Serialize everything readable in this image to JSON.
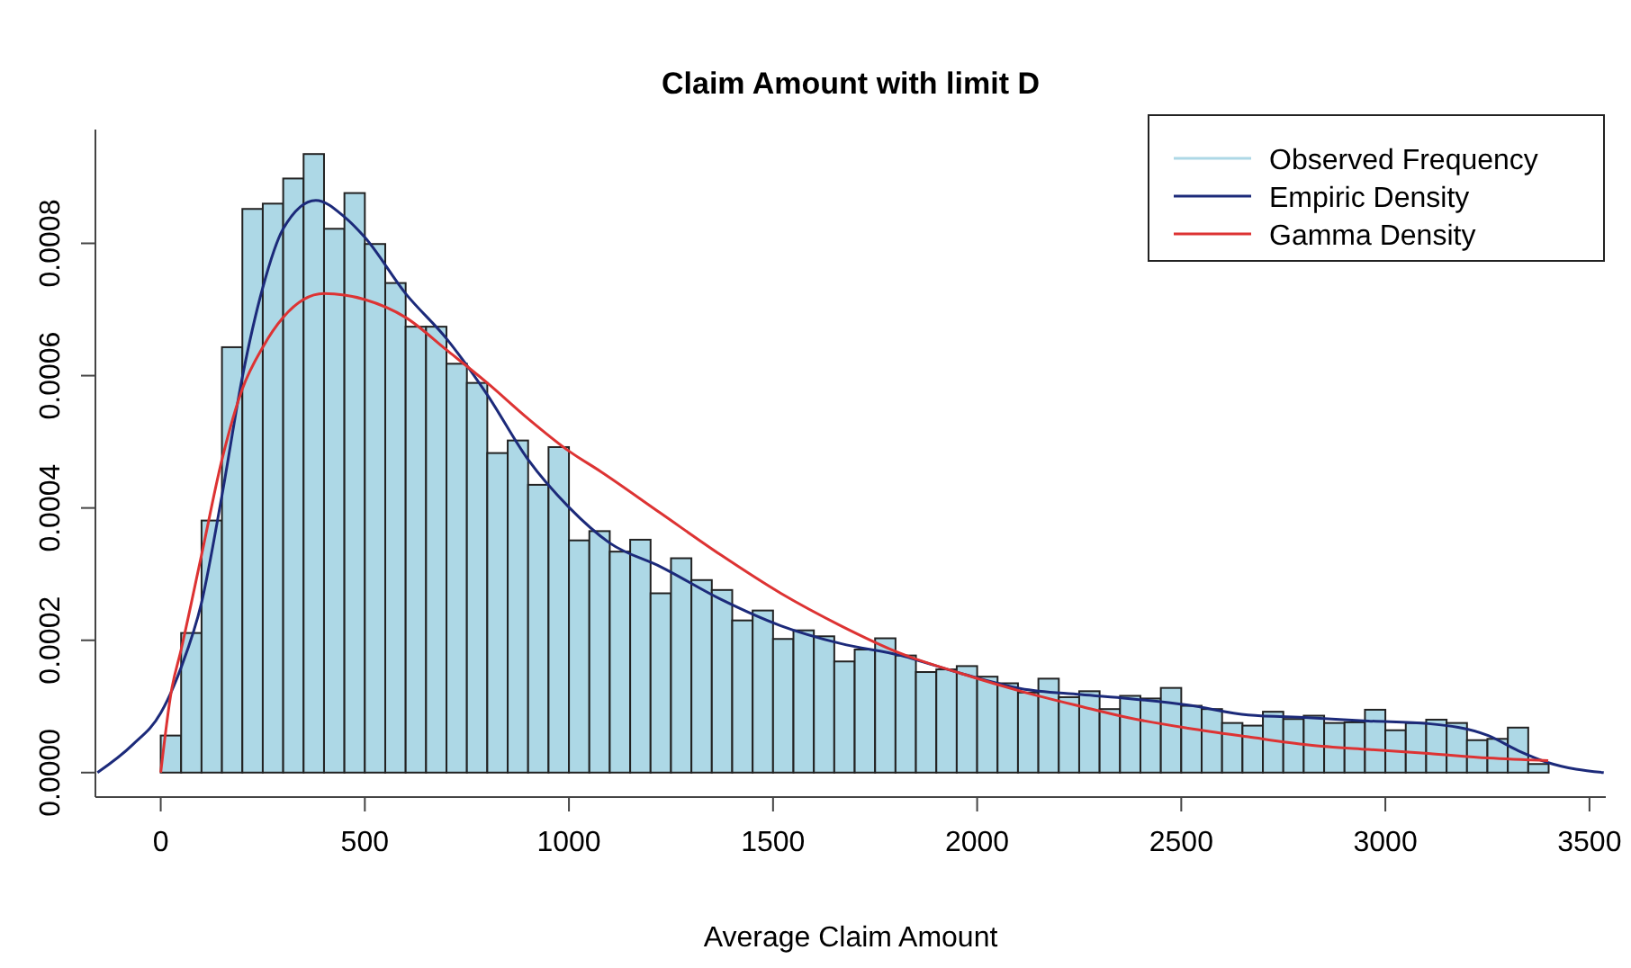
{
  "chart_data": {
    "type": "histogram",
    "title": "Claim Amount with limit D",
    "xlabel": "Average Claim Amount",
    "bins": [
      0,
      50,
      100,
      150,
      200,
      250,
      300,
      350,
      400,
      450,
      500,
      550,
      600,
      650,
      700,
      750,
      800,
      850,
      900,
      950,
      1000,
      1050,
      1100,
      1150,
      1200,
      1250,
      1300,
      1350,
      1400,
      1450,
      1500,
      1550,
      1600,
      1650,
      1700,
      1750,
      1800,
      1850,
      1900,
      1950,
      2000,
      2050,
      2100,
      2150,
      2200,
      2250,
      2300,
      2350,
      2400,
      2450,
      2500,
      2550,
      2600,
      2650,
      2700,
      2750,
      2800,
      2850,
      2900,
      2950,
      3000,
      3050,
      3100,
      3150,
      3200,
      3250,
      3300,
      3350,
      3400
    ],
    "series": [
      {
        "name": "Observed Frequency",
        "color": "#add8e6",
        "values": [
          5.6e-05,
          0.000211,
          0.000381,
          0.000643,
          0.000852,
          0.00086,
          0.000898,
          0.000935,
          0.000822,
          0.000876,
          0.000799,
          0.00074,
          0.000674,
          0.000674,
          0.000618,
          0.000589,
          0.000483,
          0.000502,
          0.000435,
          0.000492,
          0.000351,
          0.000365,
          0.000334,
          0.000352,
          0.000271,
          0.000324,
          0.000291,
          0.000276,
          0.00023,
          0.000245,
          0.000202,
          0.000215,
          0.000206,
          0.000168,
          0.000186,
          0.000203,
          0.000177,
          0.000152,
          0.000156,
          0.000161,
          0.000145,
          0.000135,
          0.000121,
          0.000142,
          0.000114,
          0.000123,
          9.6e-05,
          0.000116,
          0.000112,
          0.000128,
          0.000101,
          9.6e-05,
          7.5e-05,
          7.1e-05,
          9.2e-05,
          8.1e-05,
          8.6e-05,
          7.5e-05,
          7.6e-05,
          9.5e-05,
          6.4e-05,
          7.5e-05,
          8e-05,
          7.5e-05,
          4.9e-05,
          5.1e-05,
          6.8e-05,
          1.3e-05
        ]
      },
      {
        "type": "line",
        "name": "Empiric Density",
        "color": "#1c2a7a",
        "x": [
          -155,
          -69,
          0,
          50,
          100,
          150,
          200,
          250,
          300,
          380,
          450,
          500,
          600,
          700,
          800,
          900,
          1000,
          1100,
          1225,
          1372,
          1519,
          1666,
          1813,
          1960,
          2107,
          2254,
          2370,
          2517,
          2664,
          2811,
          2958,
          3105,
          3252,
          3326,
          3399,
          3535
        ],
        "values": [
          0,
          4.2e-05,
          9e-05,
          0.000159,
          0.000257,
          0.000419,
          0.000598,
          0.000733,
          0.000822,
          0.000865,
          0.00084,
          0.000809,
          0.000724,
          0.000656,
          0.000571,
          0.000473,
          0.000401,
          0.000347,
          0.000311,
          0.000262,
          0.000222,
          0.000195,
          0.000177,
          0.00015,
          0.000127,
          0.000118,
          0.000112,
          0.000102,
          8.7e-05,
          8.3e-05,
          7.8e-05,
          7.4e-05,
          5.6e-05,
          3.3e-05,
          1.5e-05,
          0
        ]
      },
      {
        "type": "line",
        "name": "Gamma Density",
        "color": "#dd3333",
        "x": [
          0,
          26,
          50,
          100,
          150,
          200,
          250,
          300,
          400,
          500,
          600,
          700,
          800,
          900,
          1000,
          1078,
          1225,
          1372,
          1519,
          1666,
          1813,
          1960,
          2107,
          2254,
          2370,
          2517,
          2664,
          2811,
          2958,
          3105,
          3252,
          3399
        ],
        "values": [
          0,
          0.000123,
          0.000186,
          0.000329,
          0.000473,
          0.00058,
          0.000643,
          0.000688,
          0.000724,
          0.000715,
          0.000688,
          0.000639,
          0.000589,
          0.000535,
          0.000486,
          0.000455,
          0.000392,
          0.000329,
          0.000271,
          0.000222,
          0.00018,
          0.00015,
          0.000123,
          0.0001,
          8.3e-05,
          6.7e-05,
          5.4e-05,
          4.2e-05,
          3.5e-05,
          2.9e-05,
          2.2e-05,
          1.8e-05
        ]
      }
    ],
    "xlim": [
      -160,
      3540
    ],
    "xticks": [
      0,
      500,
      1000,
      1500,
      2000,
      2500,
      3000,
      3500
    ],
    "ylim": [
      -3.7e-05,
      0.000972
    ],
    "yticks": [
      {
        "value": 0,
        "label": "0.0000"
      },
      {
        "value": 0.0002,
        "label": "0.0002"
      },
      {
        "value": 0.0004,
        "label": "0.0004"
      },
      {
        "value": 0.0006,
        "label": "0.0006"
      },
      {
        "value": 0.0008,
        "label": "0.0008"
      }
    ],
    "legend": "top right"
  }
}
